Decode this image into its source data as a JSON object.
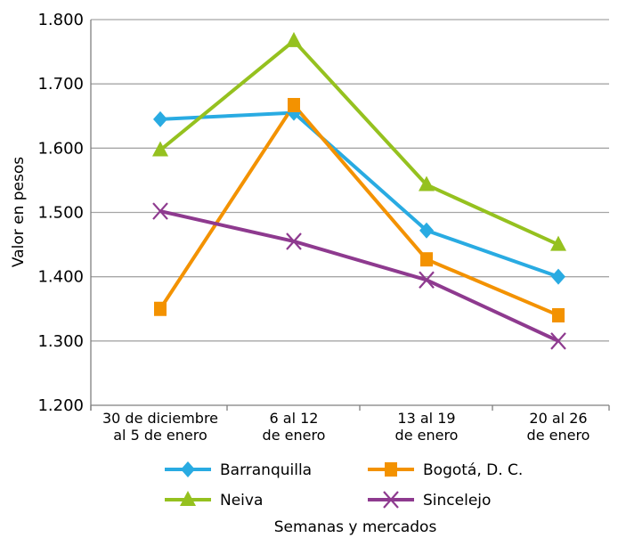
{
  "chart_data": {
    "type": "line",
    "title": "",
    "xlabel": "Semanas y mercados",
    "ylabel": "Valor en pesos",
    "categories": [
      [
        "30 de diciembre",
        "al 5 de enero"
      ],
      [
        "6 al 12",
        "de enero"
      ],
      [
        "13 al 19",
        "de enero"
      ],
      [
        "20 al 26",
        "de enero"
      ]
    ],
    "ylim": [
      1200,
      1800
    ],
    "yticks": [
      1200,
      1300,
      1400,
      1500,
      1600,
      1700,
      1800
    ],
    "ytick_labels": [
      "1.200",
      "1.300",
      "1.400",
      "1.500",
      "1.600",
      "1.700",
      "1.800"
    ],
    "grid": true,
    "legend_position": "bottom",
    "series": [
      {
        "name": "Barranquilla",
        "values": [
          1645,
          1655,
          1472,
          1400
        ],
        "color": "#29abe2",
        "marker": "diamond"
      },
      {
        "name": "Bogotá, D. C.",
        "values": [
          1350,
          1667,
          1427,
          1340
        ],
        "color": "#f39200",
        "marker": "square"
      },
      {
        "name": "Neiva",
        "values": [
          1597,
          1767,
          1543,
          1450
        ],
        "color": "#95c11f",
        "marker": "triangle"
      },
      {
        "name": "Sincelejo",
        "values": [
          1502,
          1455,
          1395,
          1300
        ],
        "color": "#8e3a8f",
        "marker": "x"
      }
    ]
  }
}
